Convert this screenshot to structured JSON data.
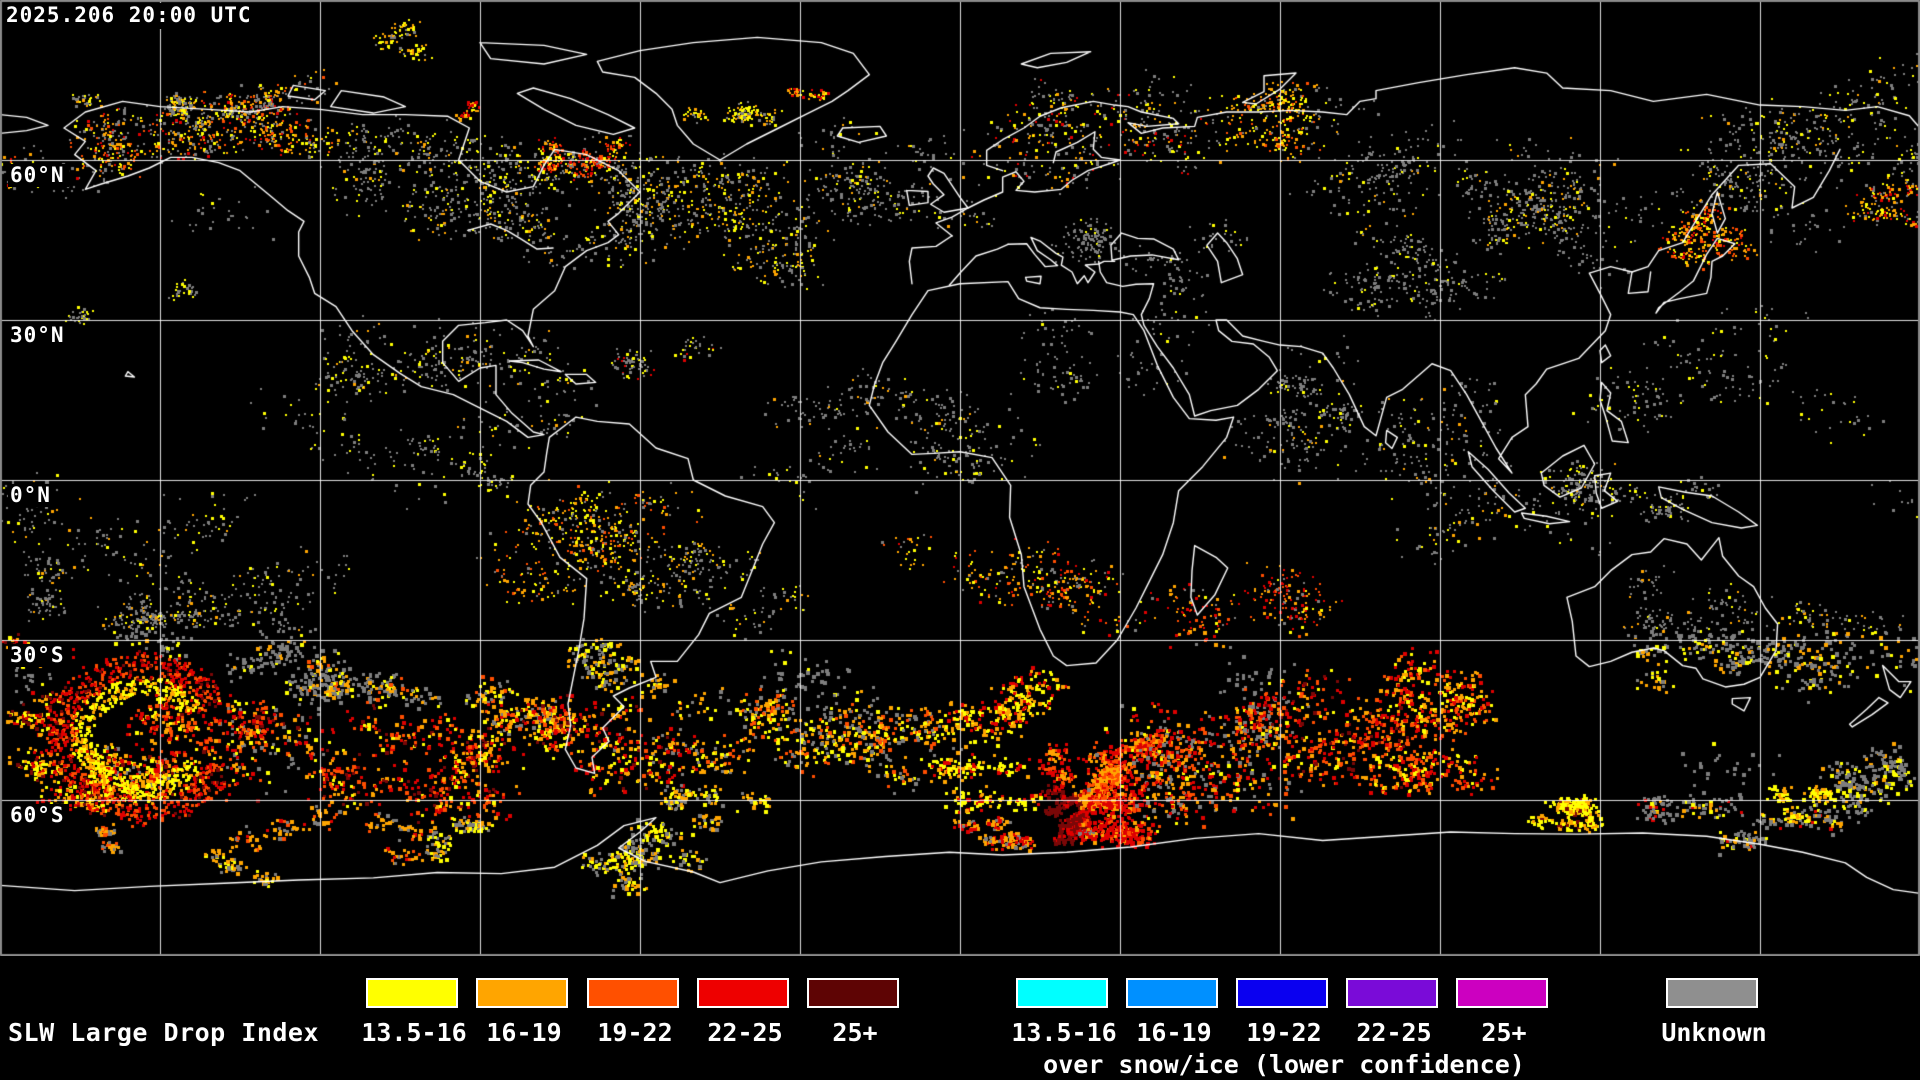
{
  "header": {
    "timestamp": "2025.206 20:00 UTC"
  },
  "map": {
    "lat_labels": [
      "60°N",
      "30°N",
      "0°N",
      "30°S",
      "60°S"
    ]
  },
  "legend": {
    "title": "SLW Large Drop Index",
    "standard": {
      "items": [
        {
          "label": "13.5-16",
          "color": "#FFFF00"
        },
        {
          "label": "16-19",
          "color": "#FFA500"
        },
        {
          "label": "19-22",
          "color": "#FF5000"
        },
        {
          "label": "22-25",
          "color": "#EE0000"
        },
        {
          "label": "25+",
          "color": "#5E0404"
        }
      ]
    },
    "snow_ice": {
      "caption": "over snow/ice (lower confidence)",
      "items": [
        {
          "label": "13.5-16",
          "color": "#00FFFF"
        },
        {
          "label": "16-19",
          "color": "#0090FF"
        },
        {
          "label": "19-22",
          "color": "#0A00F0"
        },
        {
          "label": "22-25",
          "color": "#7A0BD8"
        },
        {
          "label": "25+",
          "color": "#CC00C0"
        }
      ]
    },
    "unknown": {
      "label": "Unknown",
      "color": "#8F8F8F"
    }
  },
  "map_palette": {
    "background": "#000000",
    "grid": "#FFFFFF",
    "coast": "#FFFFFF",
    "border": "#8A8A8A",
    "yellow": "#FFFF00",
    "orange": "#FFA500",
    "orange_red": "#FF4E00",
    "red": "#DE0000",
    "dark_red": "#7A0707",
    "gray": "#7E7E7E"
  }
}
